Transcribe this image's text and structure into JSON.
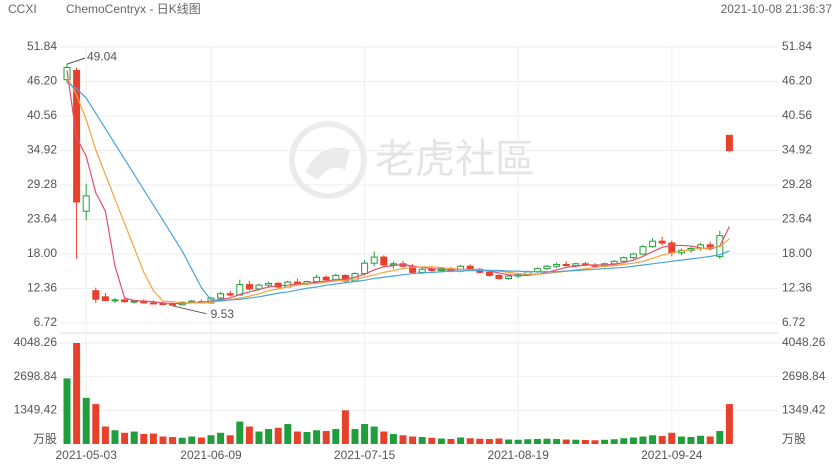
{
  "chart_data": {
    "type": "candlestick",
    "title": "CCXI",
    "subtitle": "ChemoCentryx - 日K线图",
    "timestamp": "2021-10-08 21:36:37",
    "watermark": "老虎社區",
    "categories": [
      null,
      null,
      "2021-05-03",
      null,
      null,
      null,
      null,
      null,
      null,
      null,
      null,
      null,
      null,
      null,
      null,
      "2021-06-09",
      null,
      null,
      null,
      null,
      null,
      null,
      null,
      null,
      null,
      null,
      null,
      null,
      null,
      null,
      null,
      "2021-07-15",
      null,
      null,
      null,
      null,
      null,
      null,
      null,
      null,
      null,
      null,
      null,
      null,
      null,
      null,
      null,
      "2021-08-19",
      null,
      null,
      null,
      null,
      null,
      null,
      null,
      null,
      null,
      null,
      null,
      null,
      null,
      null,
      null,
      "2021-09-24",
      null,
      null,
      null,
      null,
      null,
      null
    ],
    "open": [
      46.5,
      48,
      25,
      12,
      11,
      10.4,
      10.5,
      10.2,
      10.3,
      10,
      9.9,
      9.8,
      9.7,
      10.1,
      10.2,
      10,
      10.8,
      11.5,
      11.3,
      13,
      12.3,
      12.9,
      13.2,
      12.6,
      13.4,
      13.2,
      13.5,
      14.2,
      13.8,
      14.5,
      13.6,
      14.8,
      16.5,
      17.5,
      16.2,
      16.4,
      16,
      15,
      15.5,
      15.3,
      15.6,
      15.2,
      16,
      15.5,
      15,
      14.5,
      14,
      14.4,
      14.6,
      15.1,
      15.6,
      16,
      16.3,
      16.1,
      16.4,
      16.2,
      16,
      16.4,
      16.8,
      17.4,
      18,
      19.2,
      20.1,
      19.8,
      18.2,
      18.6,
      18.9,
      19.5,
      17.6,
      37.4
    ],
    "high": [
      49.04,
      48.5,
      29.5,
      12.5,
      11.6,
      10.8,
      10.7,
      10.5,
      10.6,
      10.4,
      10.2,
      10.1,
      10.3,
      10.5,
      10.6,
      11,
      11.8,
      12,
      13.8,
      13.6,
      13.2,
      13.5,
      13.4,
      13.6,
      14,
      13.6,
      14.6,
      14.5,
      14.8,
      14.7,
      15,
      17,
      18.4,
      17.8,
      16.8,
      16.9,
      16.4,
      15.8,
      16,
      15.8,
      15.9,
      16.2,
      16.3,
      15.7,
      15.2,
      14.7,
      14.6,
      14.8,
      15.3,
      15.8,
      16.2,
      16.6,
      16.8,
      16.6,
      16.7,
      16.5,
      16.6,
      17,
      17.6,
      18.2,
      19.5,
      20.6,
      20.8,
      20.2,
      18.9,
      19.2,
      19.8,
      20,
      21.8,
      37.4
    ],
    "low": [
      46,
      17.2,
      23.5,
      10,
      10.3,
      10,
      10.1,
      9.9,
      9.9,
      9.8,
      9.6,
      9.53,
      9.6,
      9.9,
      9.9,
      9.9,
      10.6,
      11,
      11.2,
      12,
      12,
      12.5,
      12.4,
      12.5,
      13,
      12.8,
      13.3,
      13.6,
      13.5,
      13.3,
      13.5,
      14.5,
      16,
      15.8,
      15.6,
      15.8,
      14.8,
      14.7,
      15.1,
      15,
      15,
      15,
      15.3,
      14.8,
      14.3,
      13.8,
      13.8,
      14.1,
      14.4,
      14.9,
      15.4,
      15.7,
      16,
      15.8,
      16,
      15.8,
      15.8,
      16.2,
      16.6,
      17.2,
      17.8,
      19,
      19.4,
      17.6,
      17.8,
      18.2,
      18.5,
      18.6,
      17.2,
      34.6
    ],
    "close": [
      48.5,
      26.5,
      27.5,
      10.6,
      10.4,
      10.5,
      10.2,
      10.3,
      10,
      9.9,
      9.8,
      9.7,
      10.1,
      10.3,
      10,
      10.8,
      11.5,
      11.3,
      13,
      12.3,
      12.9,
      13.2,
      12.6,
      13.4,
      13.2,
      13.5,
      14.2,
      13.8,
      14.5,
      13.6,
      14.8,
      16.5,
      17.5,
      16.2,
      16.4,
      16,
      15,
      15.5,
      15.3,
      15.6,
      15.2,
      16,
      15.5,
      15,
      14.5,
      14,
      14.4,
      14.6,
      15.1,
      15.6,
      16,
      16.3,
      16.1,
      16.4,
      16.2,
      16,
      16.4,
      16.8,
      17.4,
      18,
      19.2,
      20.1,
      19.8,
      18.2,
      18.6,
      18.9,
      19.5,
      19,
      21,
      34.9
    ],
    "volume": [
      2630,
      4048.26,
      1850,
      1600,
      700,
      550,
      450,
      500,
      400,
      420,
      300,
      280,
      250,
      300,
      260,
      350,
      450,
      350,
      900,
      700,
      500,
      600,
      650,
      800,
      500,
      480,
      550,
      520,
      600,
      1350,
      600,
      800,
      700,
      500,
      400,
      350,
      300,
      280,
      250,
      220,
      200,
      260,
      230,
      210,
      200,
      220,
      180,
      170,
      190,
      200,
      210,
      200,
      180,
      170,
      160,
      150,
      170,
      190,
      230,
      260,
      300,
      350,
      320,
      450,
      300,
      280,
      330,
      300,
      520,
      1600
    ],
    "ylim": [
      6.72,
      51.84
    ],
    "yticks": [
      51.84,
      {
        "value": 46.2,
        "label": "46.20"
      },
      40.56,
      34.92,
      29.28,
      23.64,
      {
        "value": 18,
        "label": "18.00"
      },
      12.36,
      6.72
    ],
    "vylim": [
      0,
      4048.26
    ],
    "vyticks": [
      4048.26,
      2698.84,
      1349.42
    ],
    "volume_unit": "万股",
    "annotations": [
      49.04,
      9.53
    ],
    "up_color": "#1f9e3b",
    "down_color": "#e8412b",
    "grid": true,
    "series": [
      {
        "color": "#e0506e",
        "values": [
          48,
          37,
          34,
          28,
          25,
          16,
          10.8,
          10.4,
          10.3,
          10.2,
          10,
          9.9,
          9.9,
          10,
          10.1,
          10.3,
          10.6,
          10.8,
          11.4,
          11.8,
          12.2,
          12.6,
          12.8,
          12.9,
          13.1,
          13.2,
          13.4,
          13.6,
          13.8,
          13.9,
          14.2,
          14.7,
          15.4,
          15.9,
          16.1,
          16.3,
          16,
          15.8,
          15.6,
          15.5,
          15.4,
          15.5,
          15.5,
          15.4,
          15.2,
          14.9,
          14.6,
          14.5,
          14.5,
          14.7,
          15,
          15.4,
          15.8,
          16,
          16.2,
          16.2,
          16.2,
          16.3,
          16.6,
          17,
          17.6,
          18.4,
          19.1,
          19.4,
          19.4,
          19.3,
          19,
          18.8,
          19.3,
          22.5
        ]
      },
      {
        "color": "#f4a340",
        "values": [
          47,
          44,
          40,
          35,
          31,
          27,
          23,
          19,
          15,
          12,
          10.3,
          10.2,
          10,
          10,
          10,
          10.1,
          10.3,
          10.5,
          10.8,
          11.1,
          11.5,
          12,
          12.3,
          12.6,
          12.9,
          13.1,
          13.2,
          13.4,
          13.6,
          13.7,
          13.9,
          14.2,
          14.6,
          15,
          15.3,
          15.6,
          15.8,
          15.9,
          15.9,
          15.8,
          15.6,
          15.5,
          15.4,
          15.4,
          15.3,
          15.2,
          15,
          14.8,
          14.7,
          14.7,
          14.8,
          15,
          15.2,
          15.4,
          15.6,
          15.8,
          16,
          16.1,
          16.3,
          16.5,
          16.8,
          17.3,
          17.8,
          18.2,
          18.5,
          18.7,
          18.9,
          19,
          19.2,
          20.5
        ]
      },
      {
        "color": "#4aa3df",
        "values": [
          46,
          45,
          43.5,
          41,
          38.5,
          36,
          33.5,
          31,
          28.5,
          26,
          23.5,
          21,
          18.5,
          15.5,
          12.5,
          10.5,
          10.4,
          10.5,
          10.6,
          10.8,
          11,
          11.3,
          11.6,
          11.8,
          12.1,
          12.4,
          12.6,
          12.9,
          13.1,
          13.3,
          13.5,
          13.7,
          14,
          14.2,
          14.4,
          14.6,
          14.8,
          14.9,
          15,
          15.1,
          15.2,
          15.2,
          15.3,
          15.3,
          15.3,
          15.3,
          15.2,
          15.2,
          15.1,
          15.1,
          15.1,
          15.1,
          15.2,
          15.3,
          15.4,
          15.5,
          15.6,
          15.7,
          15.8,
          16,
          16.2,
          16.4,
          16.6,
          16.8,
          17,
          17.2,
          17.4,
          17.6,
          17.9,
          18.5
        ]
      }
    ]
  }
}
